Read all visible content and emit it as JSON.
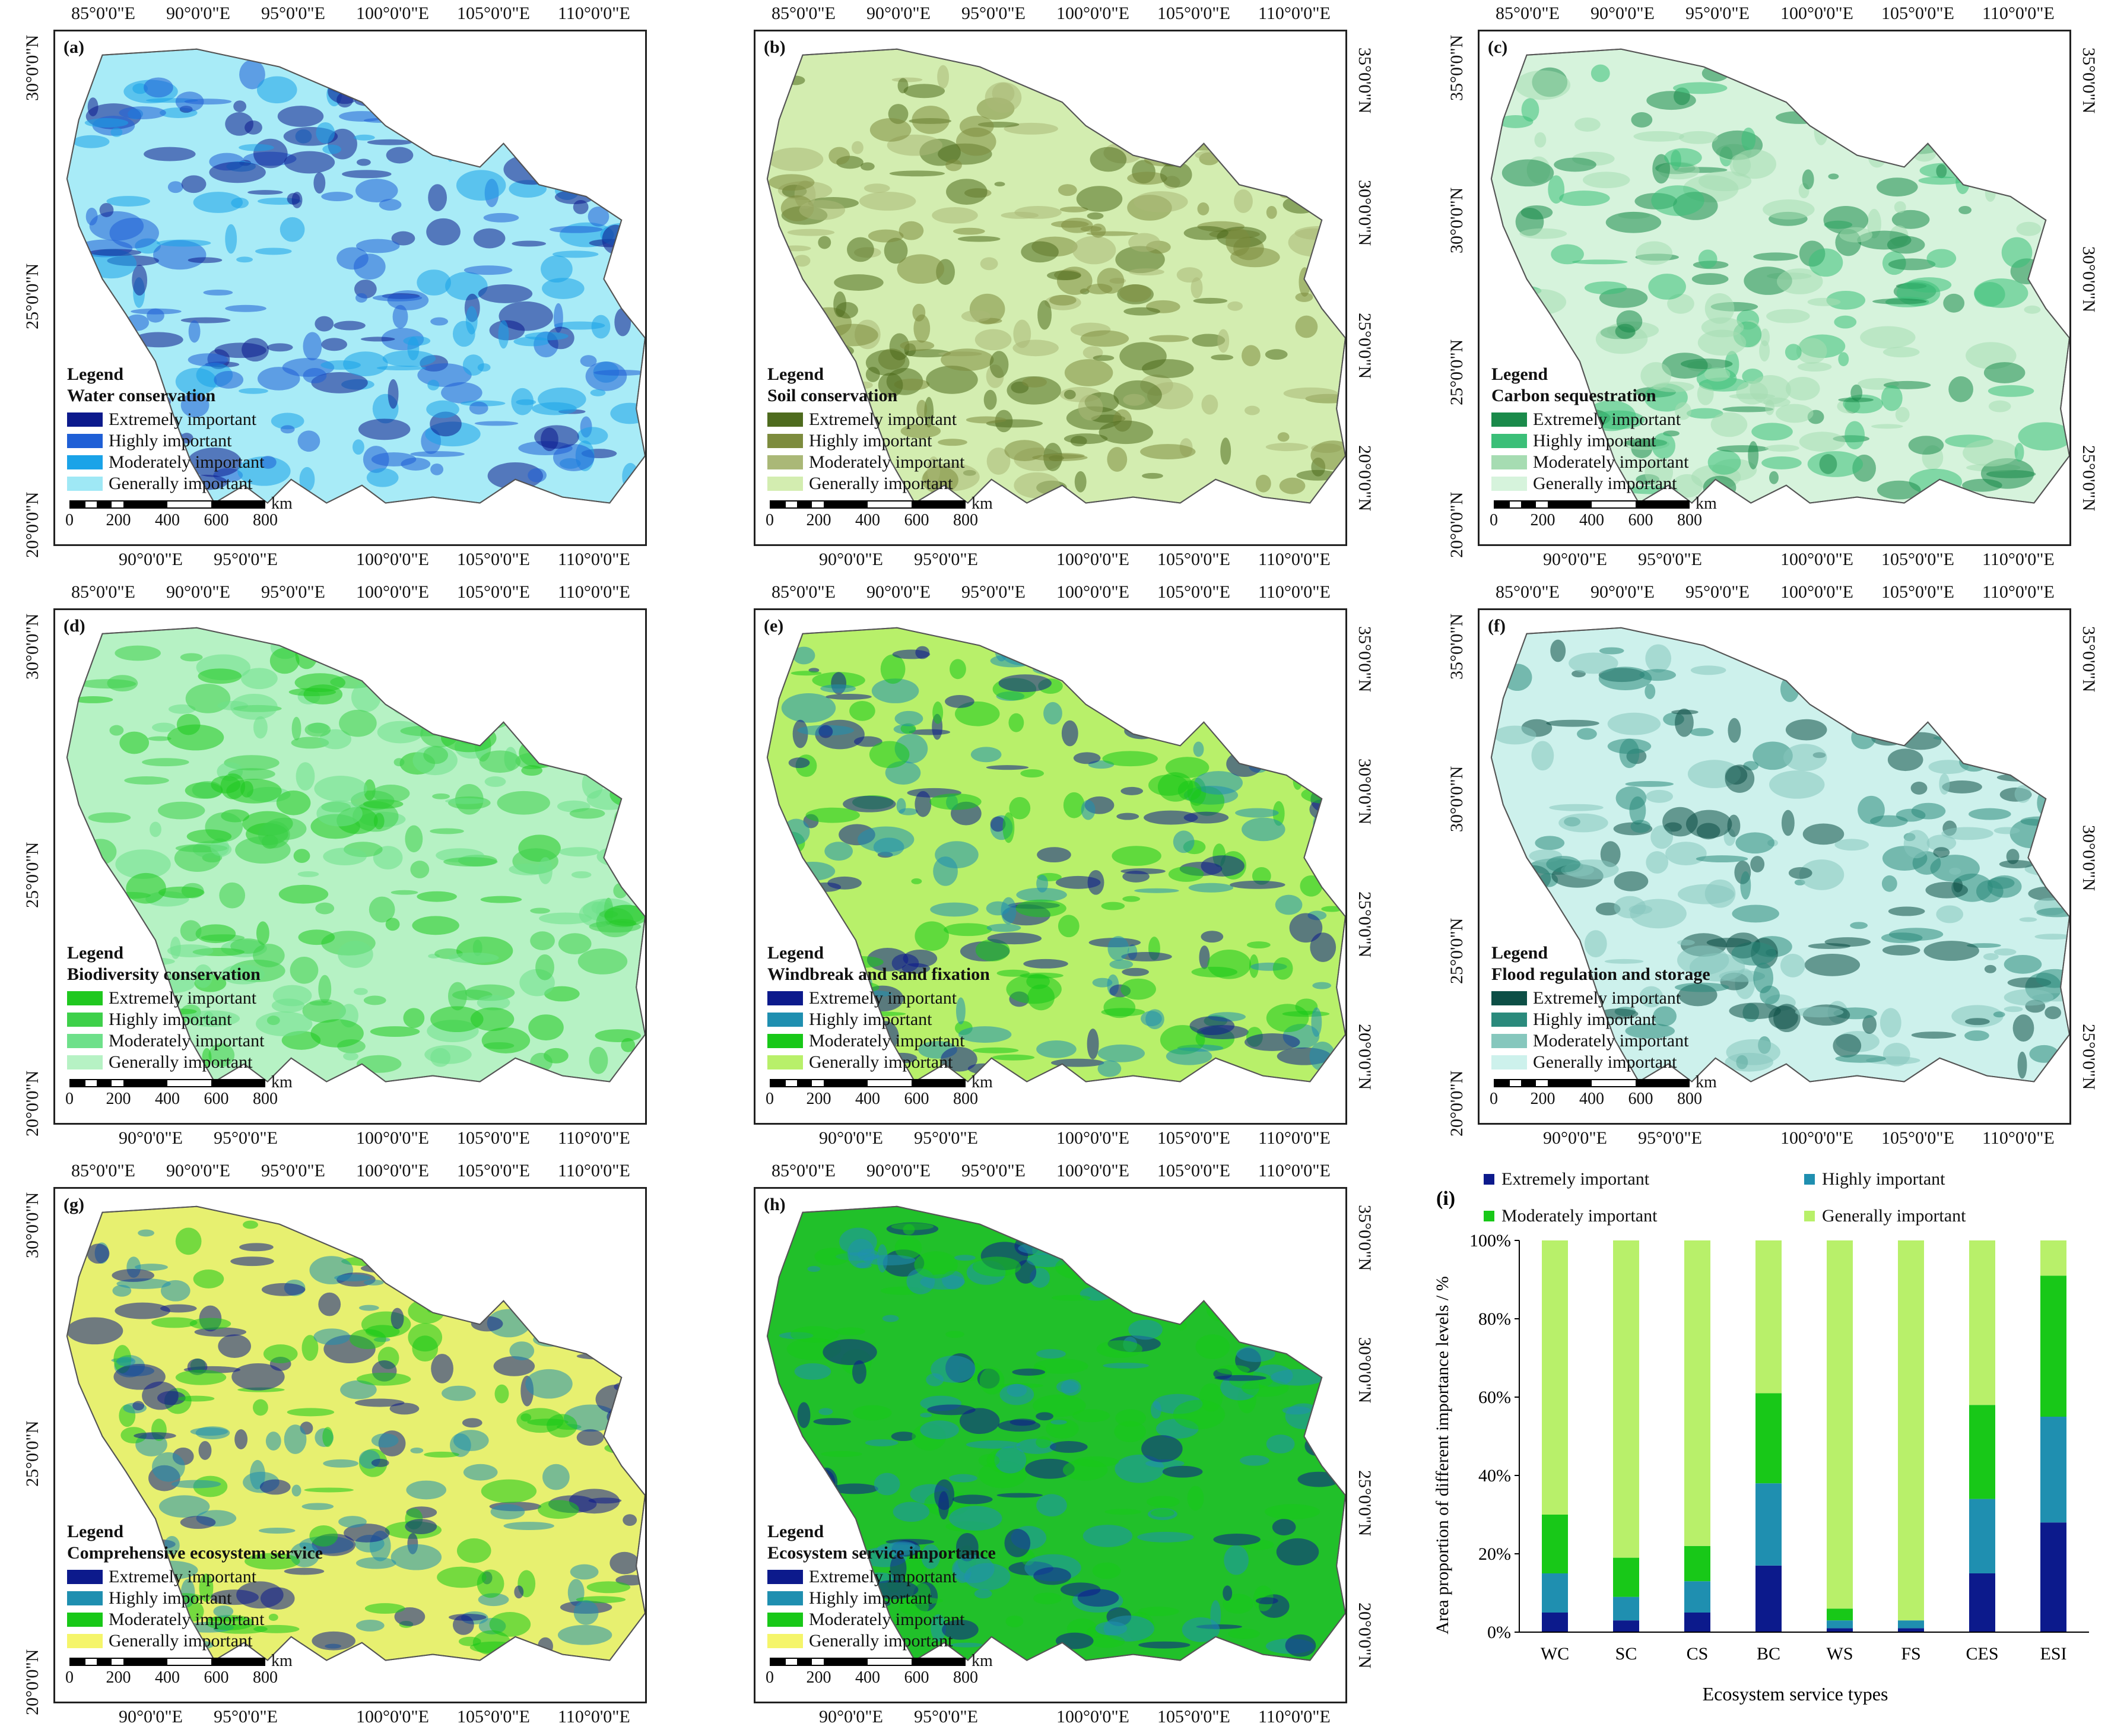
{
  "panels": [
    {
      "id": "a",
      "label": "(a)",
      "top_ticks": [
        "85°0'0\"E",
        "90°0'0\"E",
        "95°0'0\"E",
        "100°0'0\"E",
        "105°0'0\"E",
        "110°0'0\"E"
      ],
      "bottom_ticks": [
        "90°0'0\"E",
        "95°0'0\"E",
        "100°0'0\"E",
        "105°0'0\"E",
        "110°0'0\"E"
      ],
      "left_ticks": [
        "30°0'0\"N",
        "25°0'0\"N",
        "20°0'0\"N"
      ],
      "right_ticks": [],
      "legend_title": "Legend",
      "legend_sub": "Water conservation",
      "legend_items": [
        {
          "label": "Extremely important",
          "color": "#0c1a8c"
        },
        {
          "label": "Highly important",
          "color": "#1f5fd6"
        },
        {
          "label": "Moderately important",
          "color": "#1aa3e8"
        },
        {
          "label": "Generally important",
          "color": "#9fe8f5"
        }
      ],
      "base_color": "#a8ebf7",
      "scale": [
        "0",
        "200",
        "400",
        "600",
        "800"
      ],
      "scale_unit": "km"
    },
    {
      "id": "b",
      "label": "(b)",
      "top_ticks": [
        "85°0'0\"E",
        "90°0'0\"E",
        "95°0'0\"E",
        "100°0'0\"E",
        "105°0'0\"E",
        "110°0'0\"E"
      ],
      "bottom_ticks": [
        "90°0'0\"E",
        "95°0'0\"E",
        "100°0'0\"E",
        "105°0'0\"E",
        "110°0'0\"E"
      ],
      "left_ticks": [],
      "right_ticks": [
        "35°0'0\"N",
        "30°0'0\"N",
        "25°0'0\"N",
        "20°0'0\"N"
      ],
      "legend_title": "Legend",
      "legend_sub": "Soil conservation",
      "legend_items": [
        {
          "label": "Extremely important",
          "color": "#4e6b1e"
        },
        {
          "label": "Highly important",
          "color": "#7d8c3e"
        },
        {
          "label": "Moderately important",
          "color": "#aab877"
        },
        {
          "label": "Generally important",
          "color": "#d3edb0"
        }
      ],
      "base_color": "#d3edb0",
      "scale": [
        "0",
        "200",
        "400",
        "600",
        "800"
      ],
      "scale_unit": "km"
    },
    {
      "id": "c",
      "label": "(c)",
      "top_ticks": [
        "85°0'0\"E",
        "90°0'0\"E",
        "95°0'0\"E",
        "100°0'0\"E",
        "105°0'0\"E",
        "110°0'0\"E"
      ],
      "bottom_ticks": [
        "90°0'0\"E",
        "95°0'0\"E",
        "100°0'0\"E",
        "105°0'0\"E",
        "110°0'0\"E"
      ],
      "left_ticks": [
        "35°0'0\"N",
        "30°0'0\"N",
        "25°0'0\"N",
        "20°0'0\"N"
      ],
      "right_ticks": [
        "35°0'0\"N",
        "30°0'0\"N",
        "25°0'0\"N"
      ],
      "legend_title": "Legend",
      "legend_sub": "Carbon sequestration",
      "legend_items": [
        {
          "label": "Extremely important",
          "color": "#1a8a4a"
        },
        {
          "label": "Highly important",
          "color": "#3bbf78"
        },
        {
          "label": "Moderately important",
          "color": "#a6dcb2"
        },
        {
          "label": "Generally important",
          "color": "#d6f3dc"
        }
      ],
      "base_color": "#d6f3dc",
      "scale": [
        "0",
        "200",
        "400",
        "600",
        "800"
      ],
      "scale_unit": "km"
    },
    {
      "id": "d",
      "label": "(d)",
      "top_ticks": [
        "85°0'0\"E",
        "90°0'0\"E",
        "95°0'0\"E",
        "100°0'0\"E",
        "105°0'0\"E",
        "110°0'0\"E"
      ],
      "bottom_ticks": [
        "90°0'0\"E",
        "95°0'0\"E",
        "100°0'0\"E",
        "105°0'0\"E",
        "110°0'0\"E"
      ],
      "left_ticks": [
        "30°0'0\"N",
        "25°0'0\"N",
        "20°0'0\"N"
      ],
      "right_ticks": [],
      "legend_title": "Legend",
      "legend_sub": "Biodiversity conservation",
      "legend_items": [
        {
          "label": "Extremely important",
          "color": "#1fc81f"
        },
        {
          "label": "Highly important",
          "color": "#3ed04a"
        },
        {
          "label": "Moderately important",
          "color": "#6ee08a"
        },
        {
          "label": "Generally important",
          "color": "#b6f2c4"
        }
      ],
      "base_color": "#b6f2c4",
      "scale": [
        "0",
        "200",
        "400",
        "600",
        "800"
      ],
      "scale_unit": "km"
    },
    {
      "id": "e",
      "label": "(e)",
      "top_ticks": [
        "85°0'0\"E",
        "90°0'0\"E",
        "95°0'0\"E",
        "100°0'0\"E",
        "105°0'0\"E",
        "110°0'0\"E"
      ],
      "bottom_ticks": [
        "90°0'0\"E",
        "95°0'0\"E",
        "100°0'0\"E",
        "105°0'0\"E",
        "110°0'0\"E"
      ],
      "left_ticks": [],
      "right_ticks": [
        "35°0'0\"N",
        "30°0'0\"N",
        "25°0'0\"N",
        "20°0'0\"N"
      ],
      "legend_title": "Legend",
      "legend_sub": "Windbreak and sand fixation",
      "legend_items": [
        {
          "label": "Extremely important",
          "color": "#0c1a8c"
        },
        {
          "label": "Highly important",
          "color": "#1f8fb0"
        },
        {
          "label": "Moderately important",
          "color": "#18c818"
        },
        {
          "label": "Generally important",
          "color": "#b8f06a"
        }
      ],
      "base_color": "#b8f06a",
      "scale": [
        "0",
        "200",
        "400",
        "600",
        "800"
      ],
      "scale_unit": "km"
    },
    {
      "id": "f",
      "label": "(f)",
      "top_ticks": [
        "85°0'0\"E",
        "90°0'0\"E",
        "95°0'0\"E",
        "100°0'0\"E",
        "105°0'0\"E",
        "110°0'0\"E"
      ],
      "bottom_ticks": [
        "90°0'0\"E",
        "95°0'0\"E",
        "100°0'0\"E",
        "105°0'0\"E",
        "110°0'0\"E"
      ],
      "left_ticks": [
        "35°0'0\"N",
        "30°0'0\"N",
        "25°0'0\"N",
        "20°0'0\"N"
      ],
      "right_ticks": [
        "35°0'0\"N",
        "30°0'0\"N",
        "25°0'0\"N"
      ],
      "legend_title": "Legend",
      "legend_sub": "Flood regulation and storage",
      "legend_items": [
        {
          "label": "Extremely important",
          "color": "#0d4f46"
        },
        {
          "label": "Highly important",
          "color": "#2b8a7c"
        },
        {
          "label": "Moderately important",
          "color": "#86c7bd"
        },
        {
          "label": "Generally important",
          "color": "#cdf1ec"
        }
      ],
      "base_color": "#cdf1ec",
      "scale": [
        "0",
        "200",
        "400",
        "600",
        "800"
      ],
      "scale_unit": "km"
    },
    {
      "id": "g",
      "label": "(g)",
      "top_ticks": [
        "85°0'0\"E",
        "90°0'0\"E",
        "95°0'0\"E",
        "100°0'0\"E",
        "105°0'0\"E",
        "110°0'0\"E"
      ],
      "bottom_ticks": [
        "90°0'0\"E",
        "95°0'0\"E",
        "100°0'0\"E",
        "105°0'0\"E",
        "110°0'0\"E"
      ],
      "left_ticks": [
        "30°0'0\"N",
        "25°0'0\"N",
        "20°0'0\"N"
      ],
      "right_ticks": [],
      "legend_title": "Legend",
      "legend_sub": "Comprehensive ecosystem service",
      "legend_items": [
        {
          "label": "Extremely important",
          "color": "#0c1a8c"
        },
        {
          "label": "Highly important",
          "color": "#1f8fb0"
        },
        {
          "label": "Moderately important",
          "color": "#18c818"
        },
        {
          "label": "Generally important",
          "color": "#f5f56a"
        }
      ],
      "base_color": "#e7f070",
      "scale": [
        "0",
        "200",
        "400",
        "600",
        "800"
      ],
      "scale_unit": "km"
    },
    {
      "id": "h",
      "label": "(h)",
      "top_ticks": [
        "85°0'0\"E",
        "90°0'0\"E",
        "95°0'0\"E",
        "100°0'0\"E",
        "105°0'0\"E",
        "110°0'0\"E"
      ],
      "bottom_ticks": [
        "90°0'0\"E",
        "95°0'0\"E",
        "100°0'0\"E",
        "105°0'0\"E",
        "110°0'0\"E"
      ],
      "left_ticks": [],
      "right_ticks": [
        "35°0'0\"N",
        "30°0'0\"N",
        "25°0'0\"N",
        "20°0'0\"N"
      ],
      "legend_title": "Legend",
      "legend_sub": "Ecosystem service importance",
      "legend_items": [
        {
          "label": "Extremely important",
          "color": "#0c1a8c"
        },
        {
          "label": "Highly important",
          "color": "#1f8fb0"
        },
        {
          "label": "Moderately important",
          "color": "#18c818"
        },
        {
          "label": "Generally important",
          "color": "#f5f56a"
        }
      ],
      "base_color": "#21c02a",
      "scale": [
        "0",
        "200",
        "400",
        "600",
        "800"
      ],
      "scale_unit": "km"
    }
  ],
  "chart_data": {
    "type": "bar",
    "label": "(i)",
    "stacked": true,
    "categories": [
      "WC",
      "SC",
      "CS",
      "BC",
      "WS",
      "FS",
      "CES",
      "ESI"
    ],
    "series": [
      {
        "name": "Extremely important",
        "color": "#0c1a8c",
        "values": [
          5,
          3,
          5,
          17,
          1,
          1,
          15,
          28
        ]
      },
      {
        "name": "Highly important",
        "color": "#1f8fb0",
        "values": [
          10,
          6,
          8,
          21,
          2,
          2,
          19,
          27
        ]
      },
      {
        "name": "Moderately important",
        "color": "#18c818",
        "values": [
          15,
          10,
          9,
          23,
          3,
          0,
          24,
          36
        ]
      },
      {
        "name": "Generally important",
        "color": "#b8f06a",
        "values": [
          70,
          81,
          78,
          39,
          94,
          97,
          42,
          9
        ]
      }
    ],
    "ylim": [
      0,
      100
    ],
    "yticks": [
      "0%",
      "20%",
      "40%",
      "60%",
      "80%",
      "100%"
    ],
    "xlabel": "Ecosystem service types",
    "ylabel": "Area proportion of different importance levels / %",
    "legend_placement": "top"
  }
}
